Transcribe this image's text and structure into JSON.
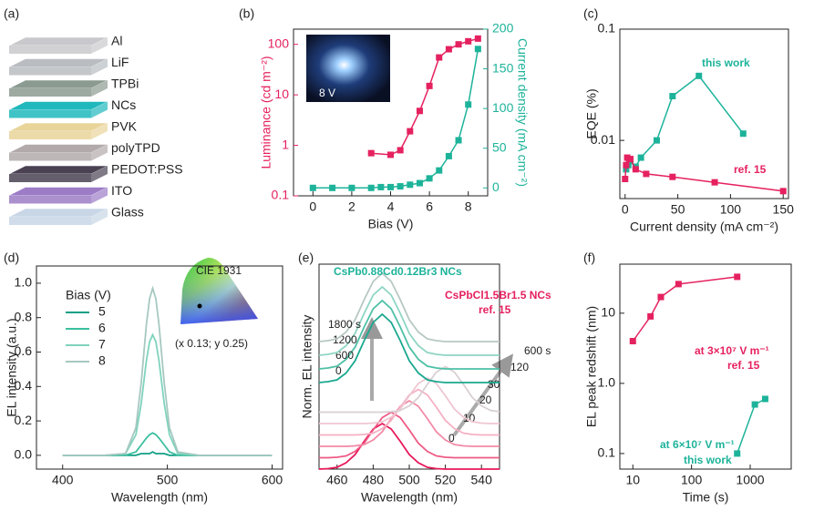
{
  "device_stack": {
    "panel": "(a)",
    "layers": [
      "Al",
      "LiF",
      "TPBi",
      "NCs",
      "PVK",
      "polyTPD",
      "PEDOT:PSS",
      "ITO",
      "Glass"
    ]
  },
  "chart_data": [
    {
      "type": "line",
      "panel": "(b)",
      "xlabel": "Bias (V)",
      "ylabel": "Luminance (cd m⁻²)",
      "y2label": "Current density (mA cm⁻²)",
      "xlim": [
        -1,
        9
      ],
      "xticks": [
        0,
        2,
        4,
        6,
        8
      ],
      "ylog": true,
      "ylim": [
        0.1,
        200
      ],
      "yticks": [
        0.1,
        1,
        10,
        100
      ],
      "y2lim": [
        -10,
        200
      ],
      "y2ticks": [
        0,
        50,
        100,
        150,
        200
      ],
      "markers": true,
      "annotations": [
        "8 V"
      ],
      "series": [
        {
          "color": "#e5215f",
          "x": [
            3,
            4,
            4.5,
            5,
            5.5,
            6,
            6.5,
            7,
            7.5,
            8,
            8.5
          ],
          "values": [
            0.7,
            0.65,
            0.8,
            1.9,
            4.8,
            15,
            55,
            80,
            100,
            115,
            130
          ]
        },
        {
          "color": "#1db39a",
          "axis": "y2",
          "x": [
            0,
            1,
            2,
            3,
            3.5,
            4,
            4.5,
            5,
            5.5,
            6,
            6.5,
            7,
            7.5,
            8,
            8.5
          ],
          "values": [
            0,
            0,
            0,
            0,
            1,
            1,
            2,
            4,
            6,
            12,
            22,
            40,
            60,
            105,
            175
          ]
        }
      ]
    },
    {
      "type": "line",
      "panel": "(c)",
      "xlabel": "Current density (mA cm⁻²)",
      "ylabel": "EQE (%)",
      "xlim": [
        -5,
        155
      ],
      "xticks": [
        0,
        50,
        100,
        150
      ],
      "ylog": true,
      "ylim": [
        0.003,
        0.1
      ],
      "yticks": [
        0.01,
        0.1
      ],
      "markers": true,
      "series": [
        {
          "name": "this work",
          "color": "#1db39a",
          "x": [
            1,
            3,
            5,
            10,
            15,
            30,
            45,
            70,
            112
          ],
          "values": [
            0.0055,
            0.006,
            0.0065,
            0.0058,
            0.007,
            0.01,
            0.025,
            0.038,
            0.0115
          ]
        },
        {
          "name": "ref. 15",
          "color": "#e5215f",
          "x": [
            0,
            1,
            2,
            5,
            10,
            20,
            45,
            85,
            150
          ],
          "values": [
            0.0045,
            0.006,
            0.007,
            0.0068,
            0.0055,
            0.005,
            0.0047,
            0.0042,
            0.0035
          ]
        }
      ]
    },
    {
      "type": "line",
      "panel": "(d)",
      "xlabel": "Wavelength (nm)",
      "ylabel": "EL intensity (a.u.)",
      "legend_title": "Bias (V)",
      "xlim": [
        375,
        610
      ],
      "xticks": [
        400,
        500,
        600
      ],
      "ylim": [
        -0.08,
        1.1
      ],
      "yticks": [
        {
          "value": 0,
          "label": "0.0"
        },
        0.2,
        0.4,
        0.6,
        0.8,
        {
          "value": 1,
          "label": "1.0"
        }
      ],
      "annotations": [
        "CIE 1931",
        "(x 0.13; y 0.25)"
      ],
      "x": [
        400,
        440,
        460,
        470,
        475,
        480,
        483,
        486,
        489,
        492,
        497,
        502,
        510,
        530,
        560,
        600
      ],
      "series": [
        {
          "name": "5",
          "color": "#109f86",
          "values": [
            0,
            0,
            0,
            0,
            0.01,
            0.01,
            0.01,
            0.02,
            0.01,
            0.01,
            0.01,
            0,
            0,
            0,
            0,
            0
          ]
        },
        {
          "name": "6",
          "color": "#3cbfa0",
          "values": [
            0,
            0,
            0,
            0.02,
            0.06,
            0.1,
            0.12,
            0.13,
            0.12,
            0.1,
            0.06,
            0.02,
            0,
            0,
            0,
            0
          ]
        },
        {
          "name": "7",
          "color": "#7fd3bd",
          "values": [
            0,
            0,
            0.01,
            0.12,
            0.3,
            0.55,
            0.66,
            0.7,
            0.66,
            0.55,
            0.3,
            0.12,
            0.01,
            0,
            0,
            0
          ]
        },
        {
          "name": "8",
          "color": "#a6c8c0",
          "values": [
            0,
            0,
            0.01,
            0.16,
            0.42,
            0.76,
            0.91,
            0.97,
            0.91,
            0.76,
            0.42,
            0.16,
            0.02,
            0,
            0,
            0
          ]
        }
      ]
    },
    {
      "type": "line",
      "panel": "(e)",
      "xlabel": "Wavelength (nm)",
      "ylabel": "Norm. EL intensity",
      "xlim": [
        450,
        550
      ],
      "xticks": [
        460,
        480,
        500,
        520,
        540
      ],
      "ylim": [
        0,
        4.5
      ],
      "annotations": [
        "CsPb0.88Cd0.12Br3 NCs",
        "CsPbCl1.5Br1.5 NCs",
        "ref. 15"
      ],
      "x": [
        450,
        455,
        460,
        465,
        470,
        475,
        480,
        485,
        490,
        495,
        500,
        505,
        510,
        515,
        520,
        525,
        530,
        535,
        540,
        545,
        550
      ],
      "series": [
        {
          "name": "0",
          "color": "#e8185a",
          "values": [
            0,
            0.01,
            0.04,
            0.14,
            0.32,
            0.61,
            0.88,
            1,
            0.88,
            0.61,
            0.32,
            0.14,
            0.04,
            0.01,
            0,
            0,
            0,
            0,
            0,
            0,
            0
          ]
        },
        {
          "name": "10",
          "color": "#ee5a84",
          "values": [
            0.25,
            0.25,
            0.26,
            0.29,
            0.39,
            0.57,
            0.86,
            1.13,
            1.25,
            1.13,
            0.86,
            0.57,
            0.39,
            0.29,
            0.26,
            0.25,
            0.25,
            0.25,
            0.25,
            0.25,
            0.25
          ]
        },
        {
          "name": "20",
          "color": "#f28aa6",
          "values": [
            0.5,
            0.5,
            0.5,
            0.5,
            0.51,
            0.54,
            0.64,
            0.82,
            1.11,
            1.38,
            1.5,
            1.38,
            1.11,
            0.82,
            0.64,
            0.54,
            0.51,
            0.5,
            0.5,
            0.5,
            0.5
          ]
        },
        {
          "name": "30",
          "color": "#f5b0c3",
          "values": [
            0.75,
            0.75,
            0.75,
            0.75,
            0.75,
            0.76,
            0.79,
            0.89,
            1.07,
            1.36,
            1.63,
            1.75,
            1.63,
            1.36,
            1.07,
            0.89,
            0.79,
            0.76,
            0.75,
            0.75,
            0.75
          ]
        },
        {
          "name": "120",
          "color": "#efc6d1",
          "values": [
            1,
            1,
            1,
            1,
            1,
            1,
            1.01,
            1.04,
            1.14,
            1.32,
            1.61,
            1.88,
            2,
            1.88,
            1.61,
            1.32,
            1.14,
            1.04,
            1.01,
            1,
            1
          ]
        },
        {
          "name": "600 s",
          "color": "#d8cfd3",
          "values": [
            1.25,
            1.25,
            1.25,
            1.25,
            1.25,
            1.25,
            1.25,
            1.25,
            1.26,
            1.29,
            1.39,
            1.57,
            1.86,
            2.13,
            2.25,
            2.13,
            1.86,
            1.57,
            1.39,
            1.29,
            1.26
          ]
        },
        {
          "name": "0",
          "color": "#1aa88f",
          "values": [
            1.9,
            1.92,
            1.96,
            2.11,
            2.38,
            2.82,
            3.22,
            3.4,
            3.22,
            2.82,
            2.38,
            2.11,
            1.96,
            1.92,
            1.9,
            1.9,
            1.9,
            1.9,
            1.9,
            1.9,
            1.9
          ]
        },
        {
          "name": "600",
          "color": "#4cc0a6",
          "values": [
            2.2,
            2.22,
            2.26,
            2.41,
            2.68,
            3.12,
            3.52,
            3.7,
            3.52,
            3.12,
            2.68,
            2.41,
            2.26,
            2.22,
            2.2,
            2.2,
            2.2,
            2.2,
            2.2,
            2.2,
            2.2
          ]
        },
        {
          "name": "1200",
          "color": "#8fd5c4",
          "values": [
            2.5,
            2.52,
            2.56,
            2.71,
            2.98,
            3.42,
            3.82,
            4,
            3.82,
            3.42,
            2.98,
            2.71,
            2.56,
            2.52,
            2.5,
            2.5,
            2.5,
            2.5,
            2.5,
            2.5,
            2.5
          ]
        },
        {
          "name": "1800 s",
          "color": "#b7c8c4",
          "values": [
            2.8,
            2.82,
            2.86,
            3.01,
            3.28,
            3.72,
            4.12,
            4.3,
            4.12,
            3.72,
            3.28,
            3.01,
            2.86,
            2.82,
            2.8,
            2.8,
            2.8,
            2.8,
            2.8,
            2.8,
            2.8
          ]
        }
      ]
    },
    {
      "type": "line",
      "panel": "(f)",
      "xlabel": "Time (s)",
      "ylabel": "EL peak redshift (nm)",
      "xlog": true,
      "xlim": [
        6,
        5000
      ],
      "xticks": [
        10,
        100,
        1000
      ],
      "ylog": true,
      "ylim": [
        0.06,
        50
      ],
      "yticks": [
        0.1,
        {
          "value": 1,
          "label": "1.0"
        },
        10
      ],
      "markers": true,
      "annotations": [
        "at 3×10⁷ V m⁻¹",
        "at 6×10⁷ V m⁻¹"
      ],
      "series": [
        {
          "name": "ref. 15",
          "color": "#e5215f",
          "x": [
            10,
            20,
            30,
            60,
            600
          ],
          "values": [
            4,
            9,
            17,
            26,
            33
          ]
        },
        {
          "name": "this work",
          "color": "#1db39a",
          "x": [
            600,
            1200,
            1800
          ],
          "values": [
            0.1,
            0.5,
            0.6
          ]
        }
      ]
    }
  ]
}
